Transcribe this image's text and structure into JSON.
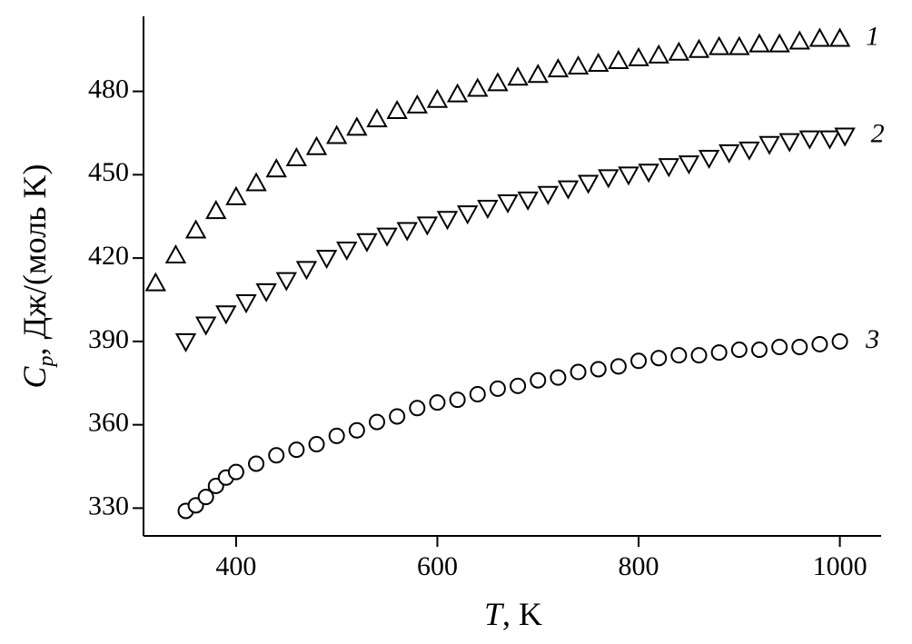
{
  "chart_data": {
    "type": "scatter",
    "x_label": {
      "symbol": "T",
      "unit": ", K"
    },
    "y_label": {
      "symbol": "C",
      "subscript": "p",
      "unit": ", Дж/(моль K)"
    },
    "xlim": [
      308,
      1041
    ],
    "ylim": [
      320,
      507
    ],
    "xticks": [
      400,
      600,
      800,
      1000
    ],
    "yticks": [
      330,
      360,
      390,
      420,
      450,
      480
    ],
    "grid": false,
    "series": [
      {
        "name": "1",
        "color": "#000000",
        "marker": "triangle-up",
        "x": [
          320,
          340,
          360,
          380,
          400,
          420,
          440,
          460,
          480,
          500,
          520,
          540,
          560,
          580,
          600,
          620,
          640,
          660,
          680,
          700,
          720,
          740,
          760,
          780,
          800,
          820,
          840,
          860,
          880,
          900,
          920,
          940,
          960,
          980,
          1000
        ],
        "values": [
          411,
          421,
          430,
          437,
          442,
          447,
          452,
          456,
          460,
          464,
          467,
          470,
          473,
          475,
          477,
          479,
          481,
          483,
          485,
          486,
          488,
          489,
          490,
          491,
          492,
          493,
          494,
          495,
          496,
          496,
          497,
          497,
          498,
          499,
          499
        ]
      },
      {
        "name": "2",
        "color": "#000000",
        "marker": "triangle-down",
        "x": [
          350,
          370,
          390,
          410,
          430,
          450,
          470,
          490,
          510,
          530,
          550,
          570,
          590,
          610,
          630,
          650,
          670,
          690,
          710,
          730,
          750,
          770,
          790,
          810,
          830,
          850,
          870,
          890,
          910,
          930,
          950,
          970,
          990,
          1005
        ],
        "values": [
          390,
          396,
          400,
          404,
          408,
          412,
          416,
          420,
          423,
          426,
          428,
          430,
          432,
          434,
          436,
          438,
          440,
          441,
          443,
          445,
          447,
          449,
          450,
          451,
          453,
          454,
          456,
          458,
          459,
          461,
          462,
          463,
          463,
          464
        ]
      },
      {
        "name": "3",
        "color": "#000000",
        "marker": "circle",
        "x": [
          350,
          360,
          370,
          380,
          390,
          400,
          420,
          440,
          460,
          480,
          500,
          520,
          540,
          560,
          580,
          600,
          620,
          640,
          660,
          680,
          700,
          720,
          740,
          760,
          780,
          800,
          820,
          840,
          860,
          880,
          900,
          920,
          940,
          960,
          980,
          1000
        ],
        "values": [
          329,
          331,
          334,
          338,
          341,
          343,
          346,
          349,
          351,
          353,
          356,
          358,
          361,
          363,
          366,
          368,
          369,
          371,
          373,
          374,
          376,
          377,
          379,
          380,
          381,
          383,
          384,
          385,
          385,
          386,
          387,
          387,
          388,
          388,
          389,
          390
        ]
      }
    ]
  }
}
